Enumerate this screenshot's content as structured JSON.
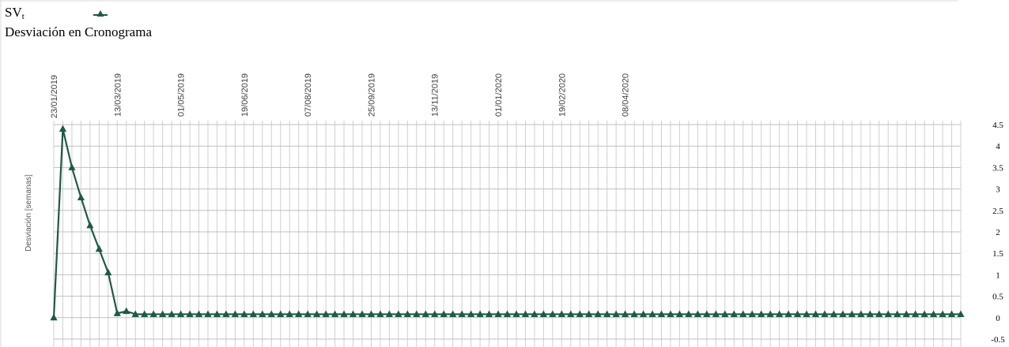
{
  "chart_data": {
    "type": "line",
    "legend_label": "SVt",
    "legend_label_main": "SV",
    "legend_label_sub": "t",
    "title": "Desviación en Cronograma",
    "ylabel": "Desviación [semanas]",
    "ylim": [
      -0.5,
      4.5
    ],
    "yticks": [
      "4.5",
      "4",
      "3.5",
      "3",
      "2.5",
      "2",
      "1.5",
      "1",
      "0.5",
      "0",
      "-0.5"
    ],
    "x_tick_labels": [
      "23/01/2019",
      "13/03/2019",
      "01/05/2019",
      "19/06/2019",
      "07/08/2019",
      "25/09/2019",
      "13/11/2019",
      "01/01/2020",
      "19/02/2020",
      "08/04/2020"
    ],
    "x_label_every": 7,
    "x_count": 101,
    "line_color": "#1f5a43",
    "grid": true,
    "legend_position": "top-left",
    "values": [
      0,
      4.4,
      3.5,
      2.8,
      2.15,
      1.6,
      1.05,
      0.1,
      0.15,
      0.08,
      0.08,
      0.08,
      0.08,
      0.08,
      0.08,
      0.08,
      0.08,
      0.08,
      0.08,
      0.08,
      0.08,
      0.08,
      0.08,
      0.08,
      0.08,
      0.08,
      0.08,
      0.08,
      0.08,
      0.08,
      0.08,
      0.08,
      0.08,
      0.08,
      0.08,
      0.08,
      0.08,
      0.08,
      0.08,
      0.08,
      0.08,
      0.08,
      0.08,
      0.08,
      0.08,
      0.08,
      0.08,
      0.08,
      0.08,
      0.08,
      0.08,
      0.08,
      0.08,
      0.08,
      0.08,
      0.08,
      0.08,
      0.08,
      0.08,
      0.08,
      0.08,
      0.08,
      0.08,
      0.08,
      0.08,
      0.08,
      0.08,
      0.08,
      0.08,
      0.08,
      0.08,
      0.08,
      0.08,
      0.08,
      0.08,
      0.08,
      0.08,
      0.08,
      0.08,
      0.08,
      0.08,
      0.08,
      0.08,
      0.08,
      0.08,
      0.08,
      0.08,
      0.08,
      0.08,
      0.08,
      0.08,
      0.08,
      0.08,
      0.08,
      0.08,
      0.08,
      0.08,
      0.08,
      0.08,
      0.08,
      0.08
    ]
  }
}
